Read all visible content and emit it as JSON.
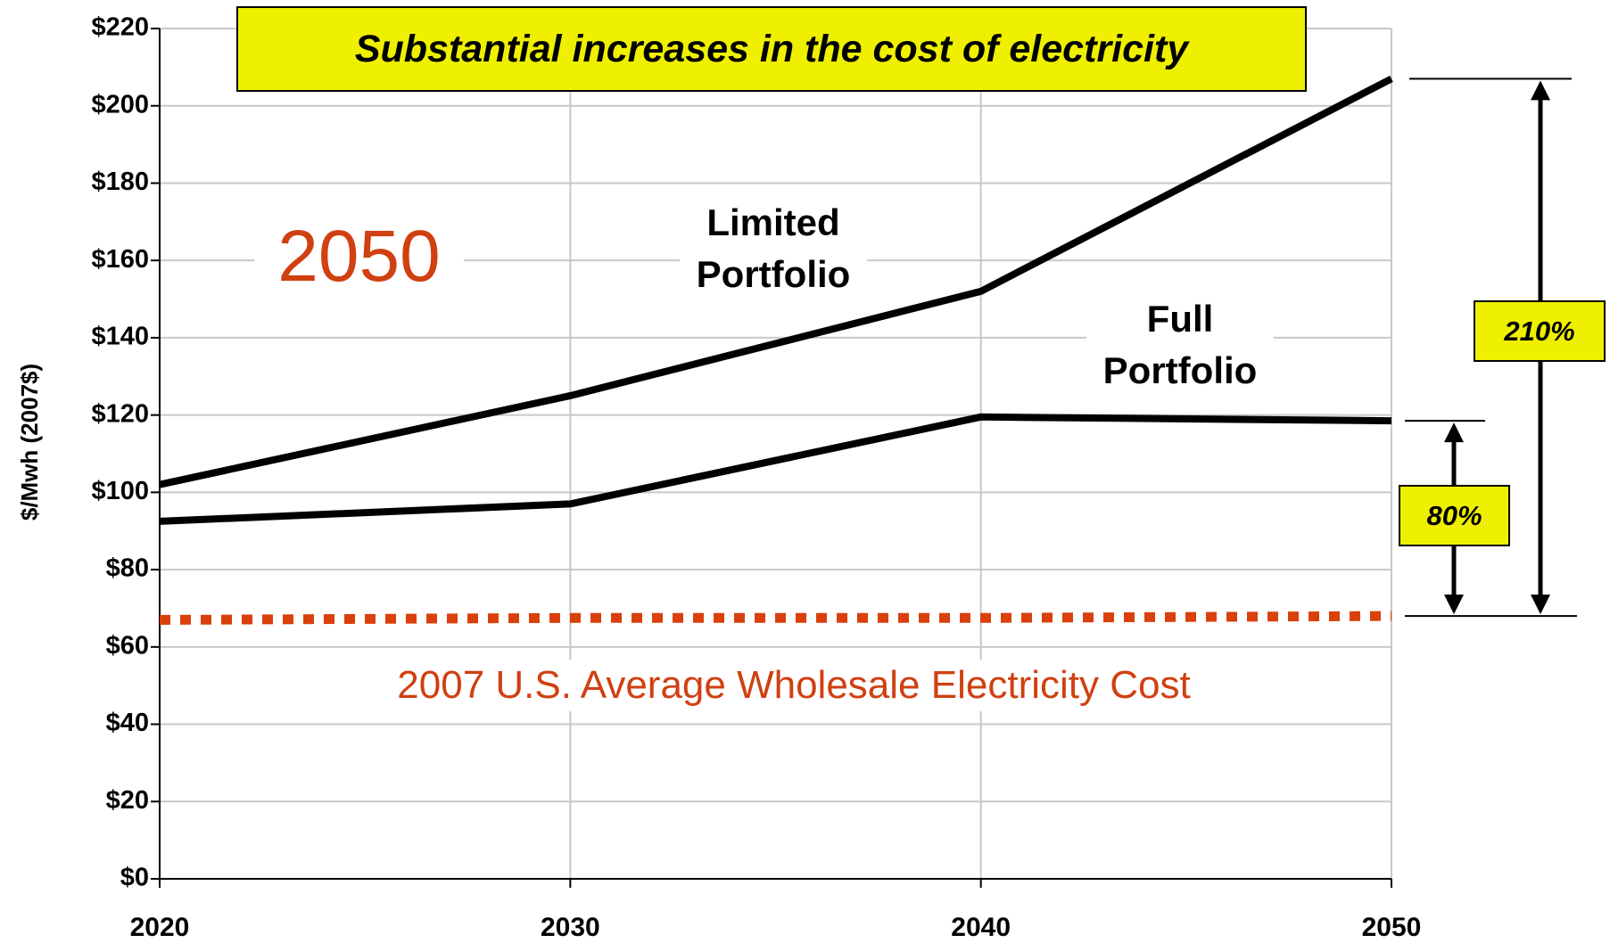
{
  "chart_data": {
    "type": "line",
    "title": "Substantial increases in the cost of electricity",
    "y_label": "$/Mwh (2007$)",
    "x": [
      2020,
      2030,
      2040,
      2050
    ],
    "xlim": [
      2020,
      2050
    ],
    "xticks": [
      2020,
      2030,
      2040,
      2050
    ],
    "ylim": [
      0,
      220
    ],
    "yticks": [
      {
        "value": 0,
        "label": "$0"
      },
      {
        "value": 20,
        "label": "$20"
      },
      {
        "value": 40,
        "label": "$40"
      },
      {
        "value": 60,
        "label": "$60"
      },
      {
        "value": 80,
        "label": "$80"
      },
      {
        "value": 100,
        "label": "$100"
      },
      {
        "value": 120,
        "label": "$120"
      },
      {
        "value": 140,
        "label": "$140"
      },
      {
        "value": 160,
        "label": "$160"
      },
      {
        "value": 180,
        "label": "$180"
      },
      {
        "value": 200,
        "label": "$200"
      },
      {
        "value": 220,
        "label": "$220"
      }
    ],
    "grid": true,
    "series": [
      {
        "name": "Limited Portfolio",
        "color": "#000000",
        "values": [
          102,
          125,
          152,
          207
        ]
      },
      {
        "name": "Full Portfolio",
        "color": "#000000",
        "values": [
          92.5,
          97,
          119.5,
          118.5
        ]
      },
      {
        "name": "2007 U.S. Average Wholesale Electricity Cost",
        "color": "#d9400b",
        "dashed": true,
        "values": [
          67,
          67.5,
          67.5,
          68
        ]
      }
    ],
    "annotations": {
      "year": "2050",
      "increase_limited": "210%",
      "increase_full": "80%"
    }
  }
}
